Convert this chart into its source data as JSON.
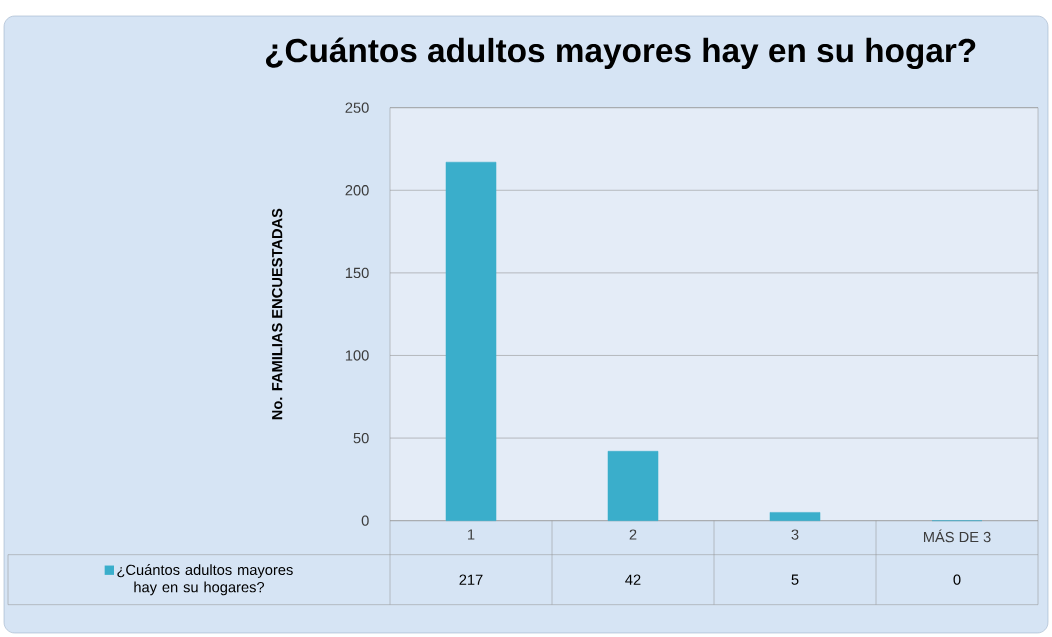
{
  "chart_data": {
    "type": "bar",
    "title": "¿Cuántos adultos mayores hay en su hogar?",
    "ylabel": "No. FAMILIAS ENCUESTADAS",
    "categories": [
      "1",
      "2",
      "3",
      "MÁS DE 3"
    ],
    "series": [
      {
        "name": "¿Cuántos adultos mayores hay en su hogares?",
        "color": "#3aaecb",
        "values": [
          217,
          42,
          5,
          0
        ]
      }
    ],
    "ylim": [
      0,
      250
    ],
    "yticks": [
      0,
      50,
      100,
      150,
      200,
      250
    ],
    "grid": "y",
    "data_labels": true,
    "legend": "bottom left"
  }
}
